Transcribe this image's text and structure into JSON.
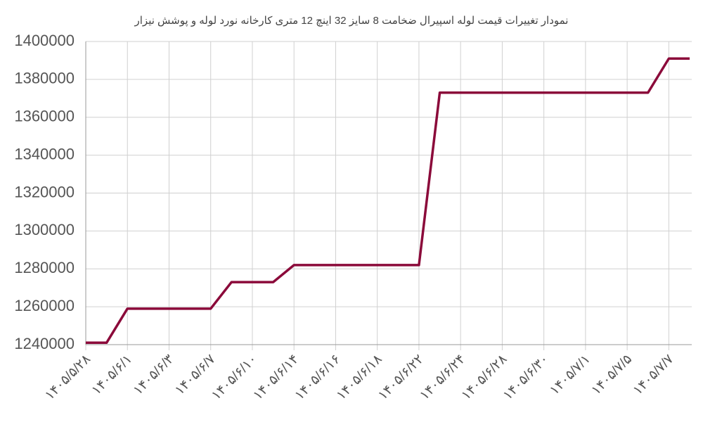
{
  "chart_data": {
    "type": "line",
    "title": "نمودار تغییرات قیمت لوله اسپیرال ضخامت 8 سایز 32 اینچ 12 متری کارخانه نورد لوله و پوشش نیزار",
    "categories": [
      "۱۴۰۵/۵/۲۸",
      null,
      "۱۴۰۵/۶/۱",
      null,
      "۱۴۰۵/۶/۳",
      null,
      "۱۴۰۵/۶/۷",
      null,
      "۱۴۰۵/۶/۱۰",
      null,
      "۱۴۰۵/۶/۱۴",
      null,
      "۱۴۰۵/۶/۱۶",
      null,
      "۱۴۰۵/۶/۱۸",
      null,
      "۱۴۰۵/۶/۲۲",
      null,
      "۱۴۰۵/۶/۲۴",
      null,
      "۱۴۰۵/۶/۲۸",
      null,
      "۱۴۰۵/۶/۳۰",
      null,
      "۱۴۰۵/۷/۱",
      null,
      "۱۴۰۵/۷/۵",
      null,
      "۱۴۰۵/۷/۷",
      null
    ],
    "values": [
      1241000,
      1241000,
      1259000,
      1259000,
      1259000,
      1259000,
      1259000,
      1273000,
      1273000,
      1273000,
      1282000,
      1282000,
      1282000,
      1282000,
      1282000,
      1282000,
      1282000,
      1373000,
      1373000,
      1373000,
      1373000,
      1373000,
      1373000,
      1373000,
      1373000,
      1373000,
      1373000,
      1373000,
      1391000,
      1391000
    ],
    "color": "#8b0a3a",
    "ylim": [
      1240000,
      1400000
    ],
    "yticks": [
      1240000,
      1260000,
      1280000,
      1300000,
      1320000,
      1340000,
      1360000,
      1380000,
      1400000
    ],
    "grid": true
  }
}
